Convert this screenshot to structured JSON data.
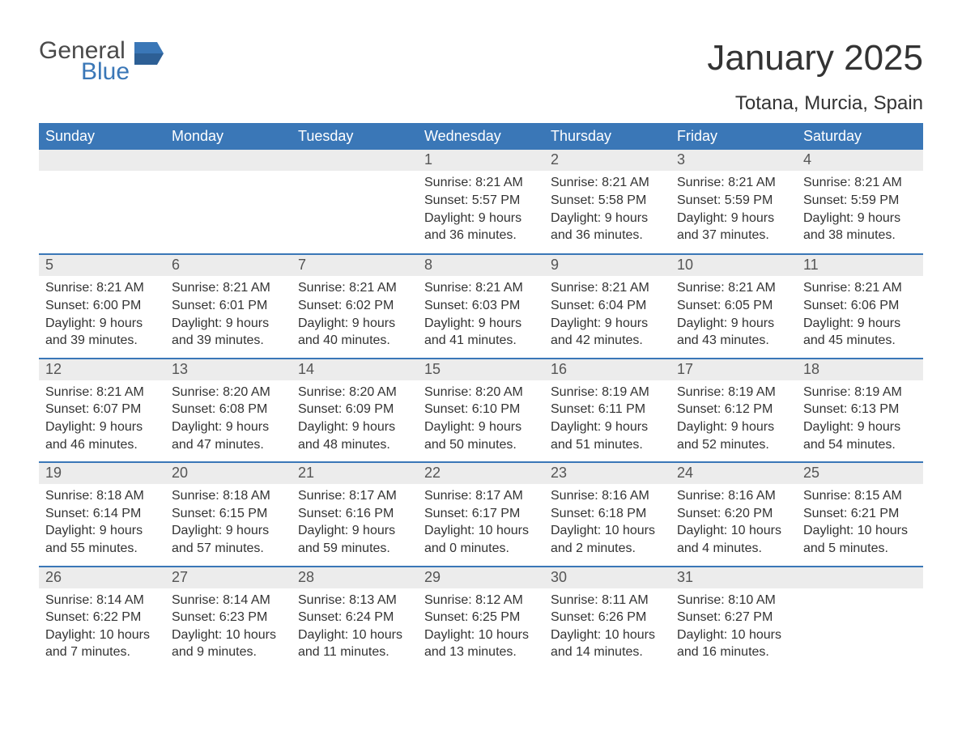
{
  "logo": {
    "word1": "General",
    "word2": "Blue",
    "brand_color": "#3a77b7",
    "text_color": "#4a4a4a"
  },
  "title": "January 2025",
  "location": "Totana, Murcia, Spain",
  "colors": {
    "header_bg": "#3a77b7",
    "header_text": "#ffffff",
    "daynum_bg": "#ececec",
    "daynum_text": "#555555",
    "body_text": "#333333",
    "week_border": "#3a77b7",
    "page_bg": "#ffffff"
  },
  "typography": {
    "title_fontsize": 44,
    "location_fontsize": 24,
    "header_fontsize": 18,
    "daynum_fontsize": 18,
    "content_fontsize": 16
  },
  "calendar": {
    "type": "table",
    "columns": [
      "Sunday",
      "Monday",
      "Tuesday",
      "Wednesday",
      "Thursday",
      "Friday",
      "Saturday"
    ],
    "weeks": [
      [
        {
          "day": "",
          "sunrise": "",
          "sunset": "",
          "daylight": ""
        },
        {
          "day": "",
          "sunrise": "",
          "sunset": "",
          "daylight": ""
        },
        {
          "day": "",
          "sunrise": "",
          "sunset": "",
          "daylight": ""
        },
        {
          "day": "1",
          "sunrise": "Sunrise: 8:21 AM",
          "sunset": "Sunset: 5:57 PM",
          "daylight": "Daylight: 9 hours and 36 minutes."
        },
        {
          "day": "2",
          "sunrise": "Sunrise: 8:21 AM",
          "sunset": "Sunset: 5:58 PM",
          "daylight": "Daylight: 9 hours and 36 minutes."
        },
        {
          "day": "3",
          "sunrise": "Sunrise: 8:21 AM",
          "sunset": "Sunset: 5:59 PM",
          "daylight": "Daylight: 9 hours and 37 minutes."
        },
        {
          "day": "4",
          "sunrise": "Sunrise: 8:21 AM",
          "sunset": "Sunset: 5:59 PM",
          "daylight": "Daylight: 9 hours and 38 minutes."
        }
      ],
      [
        {
          "day": "5",
          "sunrise": "Sunrise: 8:21 AM",
          "sunset": "Sunset: 6:00 PM",
          "daylight": "Daylight: 9 hours and 39 minutes."
        },
        {
          "day": "6",
          "sunrise": "Sunrise: 8:21 AM",
          "sunset": "Sunset: 6:01 PM",
          "daylight": "Daylight: 9 hours and 39 minutes."
        },
        {
          "day": "7",
          "sunrise": "Sunrise: 8:21 AM",
          "sunset": "Sunset: 6:02 PM",
          "daylight": "Daylight: 9 hours and 40 minutes."
        },
        {
          "day": "8",
          "sunrise": "Sunrise: 8:21 AM",
          "sunset": "Sunset: 6:03 PM",
          "daylight": "Daylight: 9 hours and 41 minutes."
        },
        {
          "day": "9",
          "sunrise": "Sunrise: 8:21 AM",
          "sunset": "Sunset: 6:04 PM",
          "daylight": "Daylight: 9 hours and 42 minutes."
        },
        {
          "day": "10",
          "sunrise": "Sunrise: 8:21 AM",
          "sunset": "Sunset: 6:05 PM",
          "daylight": "Daylight: 9 hours and 43 minutes."
        },
        {
          "day": "11",
          "sunrise": "Sunrise: 8:21 AM",
          "sunset": "Sunset: 6:06 PM",
          "daylight": "Daylight: 9 hours and 45 minutes."
        }
      ],
      [
        {
          "day": "12",
          "sunrise": "Sunrise: 8:21 AM",
          "sunset": "Sunset: 6:07 PM",
          "daylight": "Daylight: 9 hours and 46 minutes."
        },
        {
          "day": "13",
          "sunrise": "Sunrise: 8:20 AM",
          "sunset": "Sunset: 6:08 PM",
          "daylight": "Daylight: 9 hours and 47 minutes."
        },
        {
          "day": "14",
          "sunrise": "Sunrise: 8:20 AM",
          "sunset": "Sunset: 6:09 PM",
          "daylight": "Daylight: 9 hours and 48 minutes."
        },
        {
          "day": "15",
          "sunrise": "Sunrise: 8:20 AM",
          "sunset": "Sunset: 6:10 PM",
          "daylight": "Daylight: 9 hours and 50 minutes."
        },
        {
          "day": "16",
          "sunrise": "Sunrise: 8:19 AM",
          "sunset": "Sunset: 6:11 PM",
          "daylight": "Daylight: 9 hours and 51 minutes."
        },
        {
          "day": "17",
          "sunrise": "Sunrise: 8:19 AM",
          "sunset": "Sunset: 6:12 PM",
          "daylight": "Daylight: 9 hours and 52 minutes."
        },
        {
          "day": "18",
          "sunrise": "Sunrise: 8:19 AM",
          "sunset": "Sunset: 6:13 PM",
          "daylight": "Daylight: 9 hours and 54 minutes."
        }
      ],
      [
        {
          "day": "19",
          "sunrise": "Sunrise: 8:18 AM",
          "sunset": "Sunset: 6:14 PM",
          "daylight": "Daylight: 9 hours and 55 minutes."
        },
        {
          "day": "20",
          "sunrise": "Sunrise: 8:18 AM",
          "sunset": "Sunset: 6:15 PM",
          "daylight": "Daylight: 9 hours and 57 minutes."
        },
        {
          "day": "21",
          "sunrise": "Sunrise: 8:17 AM",
          "sunset": "Sunset: 6:16 PM",
          "daylight": "Daylight: 9 hours and 59 minutes."
        },
        {
          "day": "22",
          "sunrise": "Sunrise: 8:17 AM",
          "sunset": "Sunset: 6:17 PM",
          "daylight": "Daylight: 10 hours and 0 minutes."
        },
        {
          "day": "23",
          "sunrise": "Sunrise: 8:16 AM",
          "sunset": "Sunset: 6:18 PM",
          "daylight": "Daylight: 10 hours and 2 minutes."
        },
        {
          "day": "24",
          "sunrise": "Sunrise: 8:16 AM",
          "sunset": "Sunset: 6:20 PM",
          "daylight": "Daylight: 10 hours and 4 minutes."
        },
        {
          "day": "25",
          "sunrise": "Sunrise: 8:15 AM",
          "sunset": "Sunset: 6:21 PM",
          "daylight": "Daylight: 10 hours and 5 minutes."
        }
      ],
      [
        {
          "day": "26",
          "sunrise": "Sunrise: 8:14 AM",
          "sunset": "Sunset: 6:22 PM",
          "daylight": "Daylight: 10 hours and 7 minutes."
        },
        {
          "day": "27",
          "sunrise": "Sunrise: 8:14 AM",
          "sunset": "Sunset: 6:23 PM",
          "daylight": "Daylight: 10 hours and 9 minutes."
        },
        {
          "day": "28",
          "sunrise": "Sunrise: 8:13 AM",
          "sunset": "Sunset: 6:24 PM",
          "daylight": "Daylight: 10 hours and 11 minutes."
        },
        {
          "day": "29",
          "sunrise": "Sunrise: 8:12 AM",
          "sunset": "Sunset: 6:25 PM",
          "daylight": "Daylight: 10 hours and 13 minutes."
        },
        {
          "day": "30",
          "sunrise": "Sunrise: 8:11 AM",
          "sunset": "Sunset: 6:26 PM",
          "daylight": "Daylight: 10 hours and 14 minutes."
        },
        {
          "day": "31",
          "sunrise": "Sunrise: 8:10 AM",
          "sunset": "Sunset: 6:27 PM",
          "daylight": "Daylight: 10 hours and 16 minutes."
        },
        {
          "day": "",
          "sunrise": "",
          "sunset": "",
          "daylight": ""
        }
      ]
    ]
  }
}
